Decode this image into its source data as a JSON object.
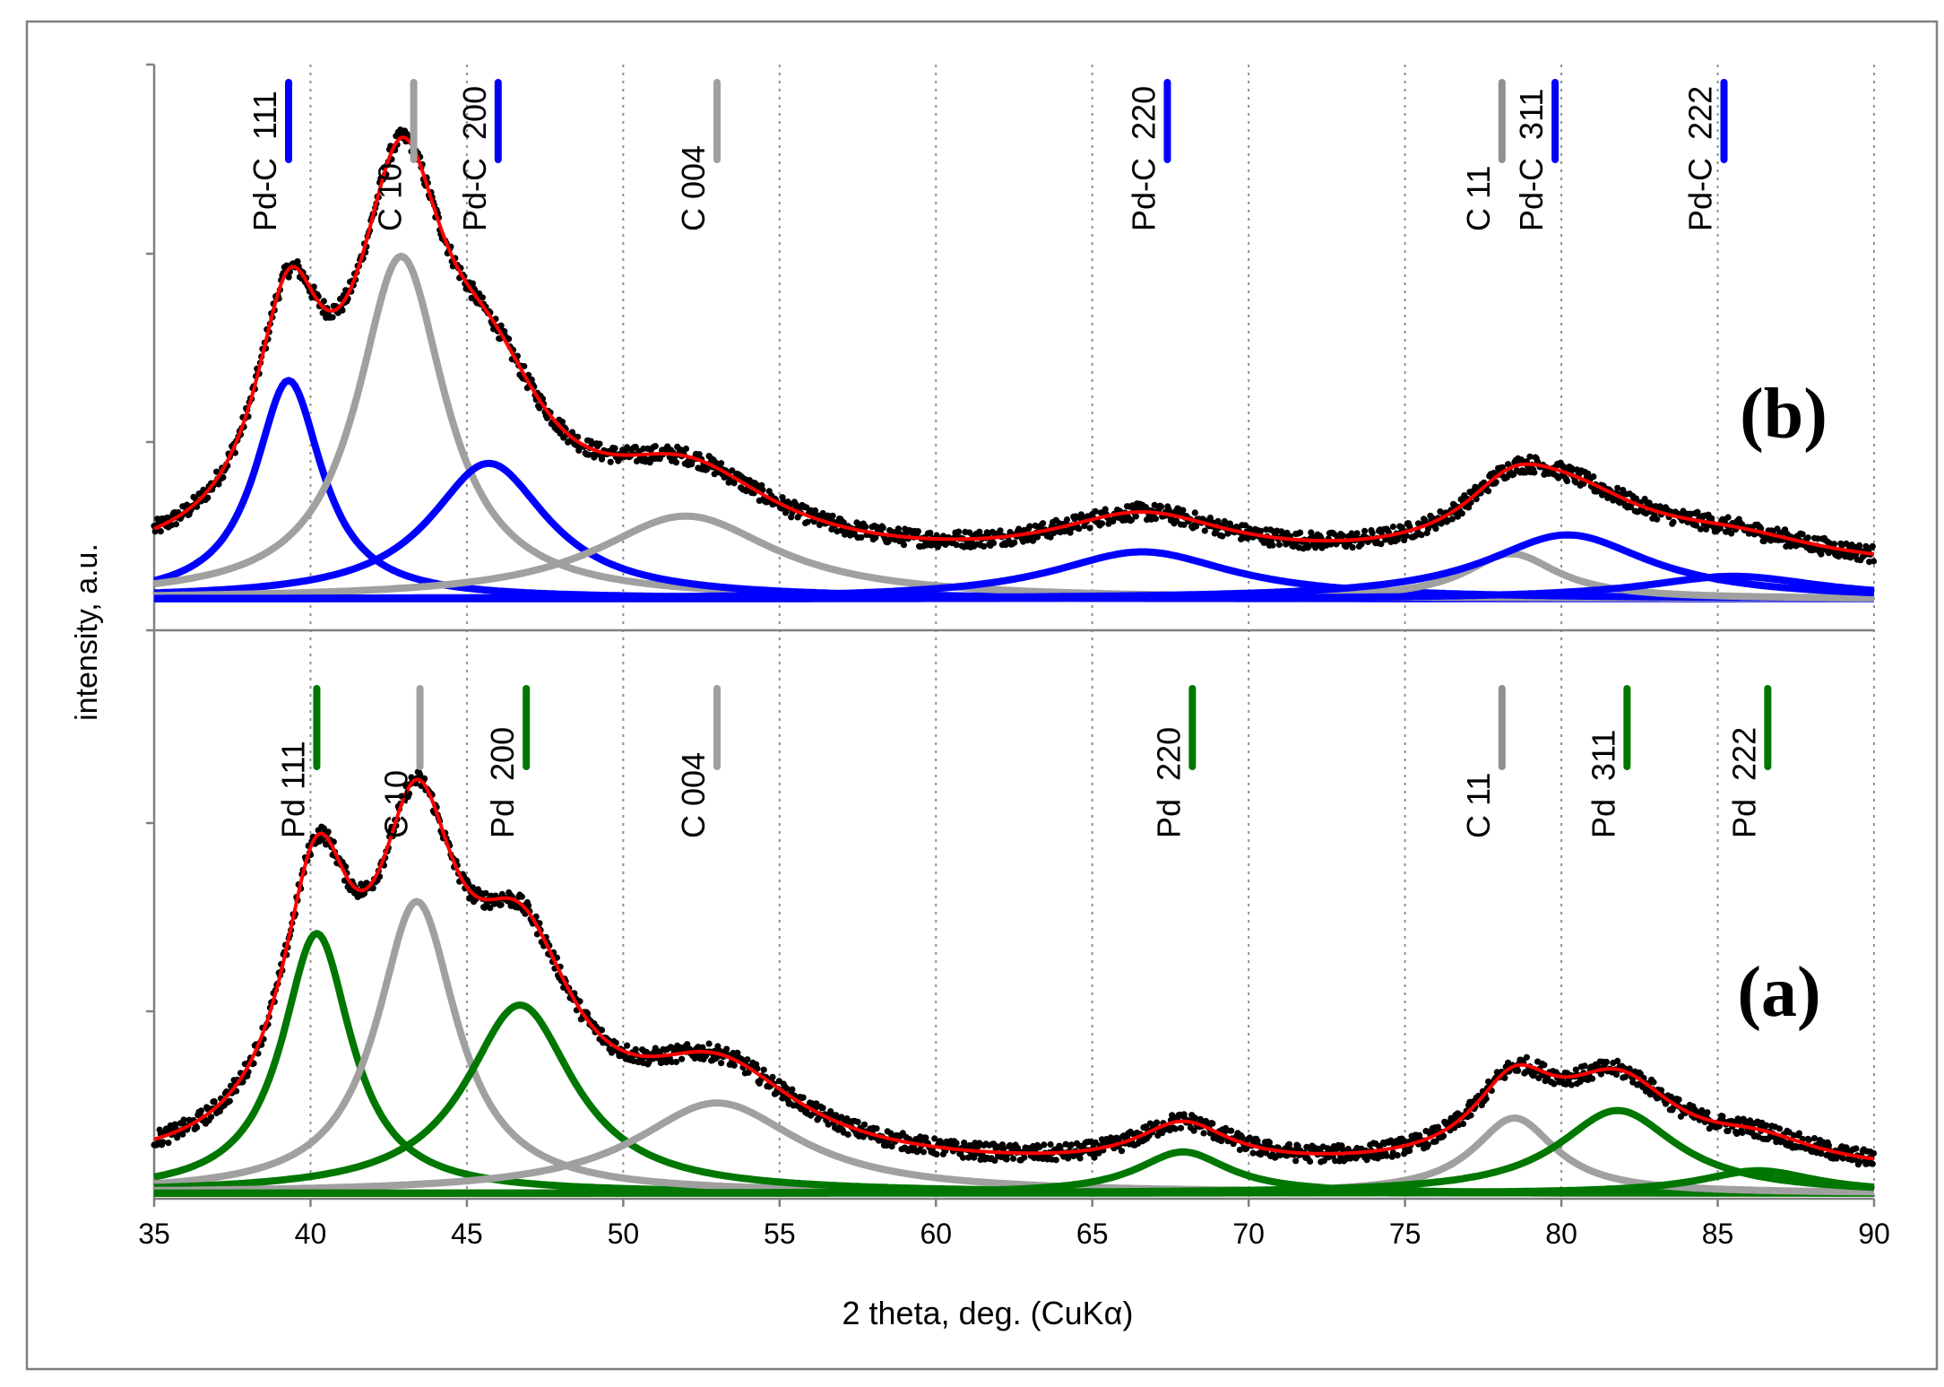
{
  "chart_data": {
    "type": "line",
    "title": "",
    "xlabel": "2 theta, deg. (CuKα)",
    "ylabel": "intensity, a.u.",
    "xlim": [
      35,
      90
    ],
    "x_ticks": [
      "35",
      "40",
      "45",
      "50",
      "55",
      "60",
      "65",
      "70",
      "75",
      "80",
      "85",
      "90"
    ],
    "grid": "vertical dotted",
    "legend": "none",
    "colors": {
      "data": "#000000",
      "fit": "#ff0000",
      "pd_c": "#0000ff",
      "pd": "#007700",
      "carbon": "#a0a0a0",
      "carbon_dark": "#909090",
      "frame": "#808080",
      "grid": "#909090"
    },
    "panels": [
      {
        "label": "(b)",
        "ylim": [
          0,
          3
        ],
        "metal_color_key": "pd_c",
        "components": [
          {
            "name": "Pd-C 111",
            "family": "metal",
            "center": 39.3,
            "height": 1.16,
            "width": 1.3
          },
          {
            "name": "C 10",
            "family": "carbon",
            "center": 42.9,
            "height": 1.82,
            "width": 1.7
          },
          {
            "name": "Pd-C 200",
            "family": "metal",
            "center": 45.7,
            "height": 0.72,
            "width": 2.3
          },
          {
            "name": "C 004",
            "family": "carbon",
            "center": 52.0,
            "height": 0.44,
            "width": 3.5
          },
          {
            "name": "Pd-C 220",
            "family": "metal",
            "center": 66.6,
            "height": 0.25,
            "width": 3.5
          },
          {
            "name": "C 11",
            "family": "carbon",
            "center": 78.4,
            "height": 0.24,
            "width": 1.8
          },
          {
            "name": "Pd-C 311",
            "family": "metal",
            "center": 80.2,
            "height": 0.34,
            "width": 3.2
          },
          {
            "name": "Pd-C 222",
            "family": "metal",
            "center": 85.5,
            "height": 0.12,
            "width": 3.5
          }
        ],
        "fit_baseline": 0.14,
        "markers": [
          {
            "label": "Pd-C  111",
            "x": 39.3,
            "family": "metal"
          },
          {
            "label": "C 10",
            "x": 43.3,
            "family": "carbon"
          },
          {
            "label": "Pd-C  200",
            "x": 46.0,
            "family": "metal"
          },
          {
            "label": "C 004",
            "x": 53.0,
            "family": "carbon"
          },
          {
            "label": "Pd-C  220",
            "x": 67.4,
            "family": "metal"
          },
          {
            "label": "C 11",
            "x": 78.1,
            "family": "carbon_dark"
          },
          {
            "label": "Pd-C  311",
            "x": 79.8,
            "family": "metal"
          },
          {
            "label": "Pd-C  222",
            "x": 85.2,
            "family": "metal"
          }
        ]
      },
      {
        "label": "(a)",
        "ylim": [
          0,
          3
        ],
        "metal_color_key": "pd",
        "components": [
          {
            "name": "Pd 111",
            "family": "metal",
            "center": 40.2,
            "height": 1.38,
            "width": 1.35
          },
          {
            "name": "C 10",
            "family": "carbon",
            "center": 43.4,
            "height": 1.55,
            "width": 1.55
          },
          {
            "name": "Pd 200",
            "family": "metal",
            "center": 46.7,
            "height": 1.0,
            "width": 2.1
          },
          {
            "name": "C 004",
            "family": "carbon",
            "center": 53.0,
            "height": 0.48,
            "width": 3.2
          },
          {
            "name": "Pd 220",
            "family": "metal",
            "center": 67.9,
            "height": 0.22,
            "width": 1.8
          },
          {
            "name": "C 11",
            "family": "carbon",
            "center": 78.5,
            "height": 0.4,
            "width": 1.6
          },
          {
            "name": "Pd 311",
            "family": "metal",
            "center": 81.8,
            "height": 0.44,
            "width": 2.3
          },
          {
            "name": "Pd 222",
            "family": "metal",
            "center": 86.3,
            "height": 0.12,
            "width": 2.3
          }
        ],
        "fit_baseline": 0.1,
        "markers": [
          {
            "label": "Pd 111",
            "x": 40.2,
            "family": "metal"
          },
          {
            "label": "C 10",
            "x": 43.5,
            "family": "carbon"
          },
          {
            "label": "Pd  200",
            "x": 46.9,
            "family": "metal"
          },
          {
            "label": "C 004",
            "x": 53.0,
            "family": "carbon"
          },
          {
            "label": "Pd  220",
            "x": 68.2,
            "family": "metal"
          },
          {
            "label": "C 11",
            "x": 78.1,
            "family": "carbon_dark"
          },
          {
            "label": "Pd  311",
            "x": 82.1,
            "family": "metal"
          },
          {
            "label": "Pd  222",
            "x": 86.6,
            "family": "metal"
          }
        ]
      }
    ]
  }
}
